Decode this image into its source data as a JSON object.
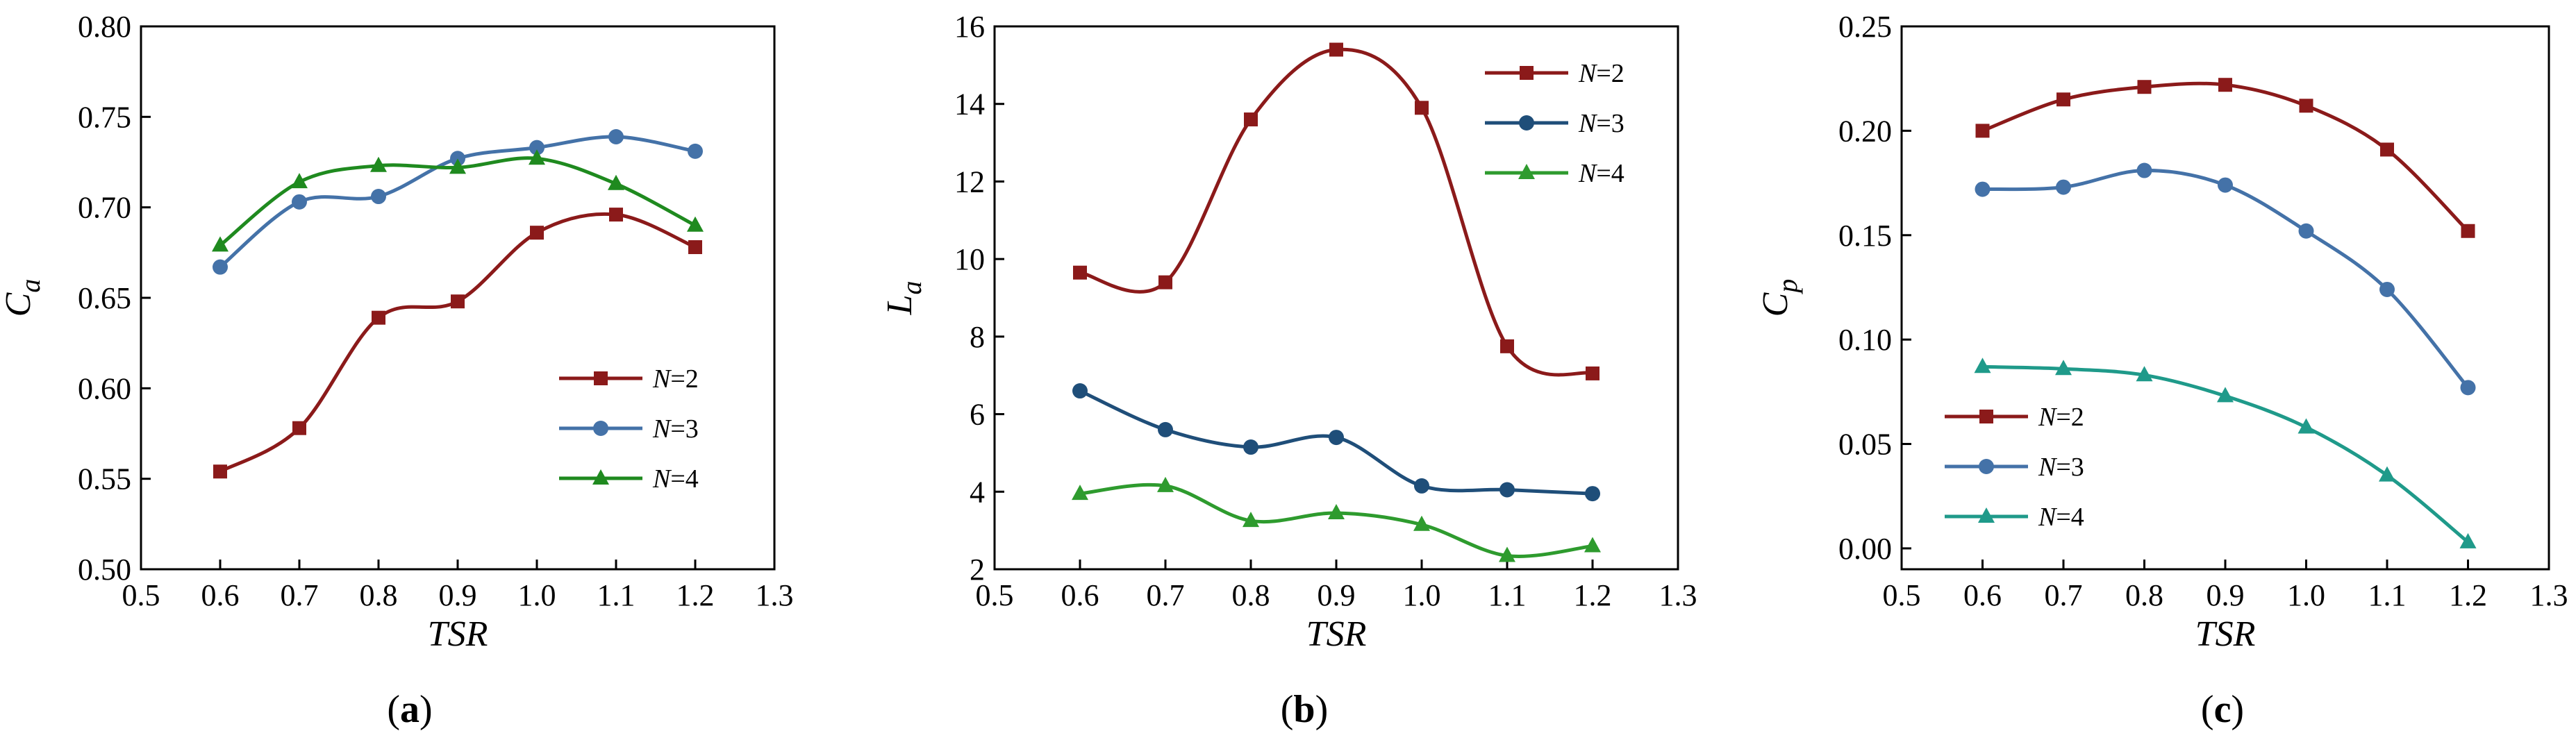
{
  "chart_data": [
    {
      "type": "line",
      "panel_label": "a",
      "xlabel": "TSR",
      "ylabel": "C",
      "ylabel_sub": "a",
      "xlim": [
        0.5,
        1.3
      ],
      "ylim": [
        0.5,
        0.8
      ],
      "x_ticks": [
        "0.5",
        "0.6",
        "0.7",
        "0.8",
        "0.9",
        "1.0",
        "1.1",
        "1.2",
        "1.3"
      ],
      "y_ticks": [
        "0.50",
        "0.55",
        "0.60",
        "0.65",
        "0.70",
        "0.75",
        "0.80"
      ],
      "legend_position": "lower-right",
      "x": [
        0.6,
        0.7,
        0.8,
        0.9,
        1.0,
        1.1,
        1.2
      ],
      "series": [
        {
          "name": "N=2",
          "var": "N",
          "eq": "=2",
          "marker": "square",
          "color": "#8B1A1A",
          "values": [
            0.554,
            0.578,
            0.639,
            0.648,
            0.686,
            0.696,
            0.678
          ]
        },
        {
          "name": "N=3",
          "var": "N",
          "eq": "=3",
          "marker": "circle",
          "color": "#4472A8",
          "values": [
            0.667,
            0.703,
            0.706,
            0.727,
            0.733,
            0.739,
            0.731
          ]
        },
        {
          "name": "N=4",
          "var": "N",
          "eq": "=4",
          "marker": "triangle",
          "color": "#1F8A1F",
          "values": [
            0.679,
            0.714,
            0.723,
            0.722,
            0.727,
            0.713,
            0.69
          ]
        }
      ]
    },
    {
      "type": "line",
      "panel_label": "b",
      "xlabel": "TSR",
      "ylabel": "L",
      "ylabel_sub": "a",
      "xlim": [
        0.5,
        1.3
      ],
      "ylim": [
        2,
        16
      ],
      "x_ticks": [
        "0.5",
        "0.6",
        "0.7",
        "0.8",
        "0.9",
        "1.0",
        "1.1",
        "1.2",
        "1.3"
      ],
      "y_ticks": [
        "2",
        "4",
        "6",
        "8",
        "10",
        "12",
        "14",
        "16"
      ],
      "legend_position": "top-right",
      "x": [
        0.6,
        0.7,
        0.8,
        0.9,
        1.0,
        1.1,
        1.2
      ],
      "series": [
        {
          "name": "N=2",
          "var": "N",
          "eq": "=2",
          "marker": "square",
          "color": "#8B1A1A",
          "values": [
            9.65,
            9.4,
            13.6,
            15.4,
            13.9,
            7.75,
            7.05
          ]
        },
        {
          "name": "N=3",
          "var": "N",
          "eq": "=3",
          "marker": "circle",
          "color": "#1F4E79",
          "values": [
            6.6,
            5.6,
            5.15,
            5.4,
            4.15,
            4.05,
            3.95
          ]
        },
        {
          "name": "N=4",
          "var": "N",
          "eq": "=4",
          "marker": "triangle",
          "color": "#2E9B2E",
          "values": [
            3.95,
            4.15,
            3.25,
            3.45,
            3.15,
            2.35,
            2.6
          ]
        }
      ]
    },
    {
      "type": "line",
      "panel_label": "c",
      "xlabel": "TSR",
      "ylabel": "C",
      "ylabel_sub": "p",
      "xlim": [
        0.5,
        1.3
      ],
      "ylim": [
        -0.01,
        0.25
      ],
      "x_ticks": [
        "0.5",
        "0.6",
        "0.7",
        "0.8",
        "0.9",
        "1.0",
        "1.1",
        "1.2",
        "1.3"
      ],
      "y_ticks": [
        "0.00",
        "0.05",
        "0.10",
        "0.15",
        "0.20",
        "0.25"
      ],
      "legend_position": "lower-left",
      "x": [
        0.6,
        0.7,
        0.8,
        0.9,
        1.0,
        1.1,
        1.2
      ],
      "series": [
        {
          "name": "N=2",
          "var": "N",
          "eq": "=2",
          "marker": "square",
          "color": "#8B1A1A",
          "values": [
            0.2,
            0.215,
            0.221,
            0.222,
            0.212,
            0.191,
            0.152
          ]
        },
        {
          "name": "N=3",
          "var": "N",
          "eq": "=3",
          "marker": "circle",
          "color": "#4472A8",
          "values": [
            0.172,
            0.173,
            0.181,
            0.174,
            0.152,
            0.124,
            0.077
          ]
        },
        {
          "name": "N=4",
          "var": "N",
          "eq": "=4",
          "marker": "triangle",
          "color": "#1F9A8A",
          "values": [
            0.087,
            0.086,
            0.083,
            0.073,
            0.058,
            0.035,
            0.003
          ]
        }
      ]
    }
  ]
}
